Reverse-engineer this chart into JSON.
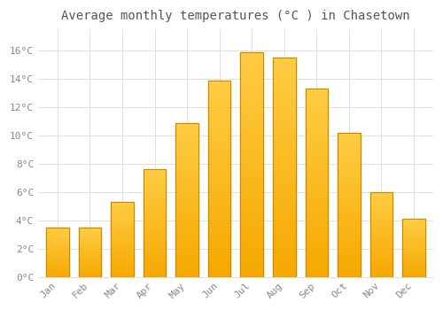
{
  "title": "Average monthly temperatures (°C ) in Chasetown",
  "months": [
    "Jan",
    "Feb",
    "Mar",
    "Apr",
    "May",
    "Jun",
    "Jul",
    "Aug",
    "Sep",
    "Oct",
    "Nov",
    "Dec"
  ],
  "temperatures": [
    3.5,
    3.5,
    5.3,
    7.6,
    10.9,
    13.9,
    15.9,
    15.5,
    13.3,
    10.2,
    6.0,
    4.1
  ],
  "bar_color_bottom": "#F5A800",
  "bar_color_top": "#FFCC44",
  "bar_edge_color": "#CC8800",
  "yticks": [
    0,
    2,
    4,
    6,
    8,
    10,
    12,
    14,
    16
  ],
  "ylim": [
    0,
    17.5
  ],
  "background_color": "#FFFFFF",
  "grid_color": "#E0E0E0",
  "title_fontsize": 10,
  "tick_fontsize": 8,
  "tick_color": "#888888",
  "title_color": "#555555"
}
